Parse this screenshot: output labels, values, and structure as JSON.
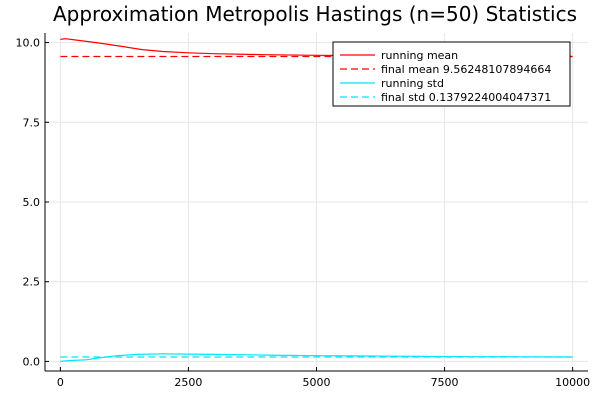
{
  "chart_data": {
    "type": "line",
    "title": "Approximation Metropolis Hastings (n=50) Statistics",
    "xlabel": "",
    "ylabel": "",
    "xlim": [
      0,
      10000
    ],
    "ylim": [
      0,
      10.1
    ],
    "xticks": [
      0,
      2500,
      5000,
      7500,
      10000
    ],
    "xtick_labels": [
      "0",
      "2500",
      "5000",
      "7500",
      "10000"
    ],
    "yticks": [
      0,
      2.5,
      5,
      7.5,
      10
    ],
    "ytick_labels": [
      "0.0",
      "2.5",
      "5.0",
      "7.5",
      "10.0"
    ],
    "grid": true,
    "legend_position": "top-right",
    "series": [
      {
        "name": "running mean",
        "color": "#ff0000",
        "style": "solid",
        "x": [
          0,
          100,
          300,
          700,
          1200,
          1600,
          2000,
          2500,
          3000,
          4000,
          5000,
          6000,
          7000,
          8000,
          9000,
          10000
        ],
        "y": [
          10.1,
          10.12,
          10.08,
          10.0,
          9.88,
          9.78,
          9.72,
          9.68,
          9.65,
          9.62,
          9.6,
          9.59,
          9.58,
          9.57,
          9.565,
          9.5625
        ]
      },
      {
        "name": "final mean 9.56248107894664",
        "color": "#ff0000",
        "style": "dashed",
        "x": [
          0,
          10000
        ],
        "y": [
          9.56248107894664,
          9.56248107894664
        ]
      },
      {
        "name": "running std",
        "color": "#00e5ff",
        "style": "solid",
        "x": [
          0,
          200,
          500,
          800,
          1100,
          1500,
          2000,
          2500,
          3000,
          4000,
          5000,
          6000,
          7000,
          8000,
          9000,
          10000
        ],
        "y": [
          0.0,
          0.03,
          0.05,
          0.12,
          0.18,
          0.22,
          0.24,
          0.23,
          0.22,
          0.2,
          0.18,
          0.17,
          0.16,
          0.15,
          0.145,
          0.138
        ]
      },
      {
        "name": "final std 0.1379224004047371",
        "color": "#00e5ff",
        "style": "dashed",
        "x": [
          0,
          10000
        ],
        "y": [
          0.1379224004047371,
          0.1379224004047371
        ]
      }
    ]
  }
}
